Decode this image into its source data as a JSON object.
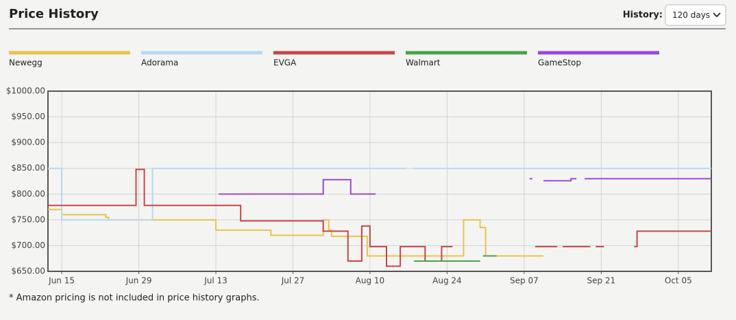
{
  "header": {
    "title": "Price History",
    "history_label": "History:",
    "history_value": "120 days"
  },
  "chart_data": {
    "type": "line",
    "step": true,
    "xlim": [
      -2.5,
      118
    ],
    "xticks": [
      {
        "value": 0,
        "label": "Jun 15"
      },
      {
        "value": 14,
        "label": "Jun 29"
      },
      {
        "value": 28,
        "label": "Jul 13"
      },
      {
        "value": 42,
        "label": "Jul 27"
      },
      {
        "value": 56,
        "label": "Aug 10"
      },
      {
        "value": 70,
        "label": "Aug 24"
      },
      {
        "value": 84,
        "label": "Sep 07"
      },
      {
        "value": 98,
        "label": "Sep 21"
      },
      {
        "value": 112,
        "label": "Oct 05"
      }
    ],
    "ylim": [
      650,
      1000
    ],
    "yticks": [
      {
        "value": 650,
        "label": "$650.00"
      },
      {
        "value": 700,
        "label": "$700.00"
      },
      {
        "value": 750,
        "label": "$750.00"
      },
      {
        "value": 800,
        "label": "$800.00"
      },
      {
        "value": 850,
        "label": "$850.00"
      },
      {
        "value": 900,
        "label": "$900.00"
      },
      {
        "value": 950,
        "label": "$950.00"
      },
      {
        "value": 1000,
        "label": "$1000.00"
      }
    ],
    "grid": true,
    "series": [
      {
        "name": "Newegg",
        "color": "#e8c44a",
        "x": [
          -2.5,
          0,
          0,
          8,
          8,
          8.5,
          8.5,
          28,
          28,
          38,
          38,
          47.5,
          47.5,
          48.5,
          48.5,
          49,
          49,
          55.5,
          55.5,
          73,
          73,
          76,
          76,
          77,
          77,
          87.5
        ],
        "values": [
          770,
          770,
          760,
          760,
          755,
          755,
          750,
          750,
          730,
          730,
          720,
          720,
          750,
          750,
          730,
          730,
          718,
          718,
          680,
          680,
          750,
          750,
          735,
          735,
          680,
          680
        ]
      },
      {
        "name": "Adorama",
        "color": "#b5d8f2",
        "x": [
          -2.5,
          0,
          0,
          16.5,
          16.5,
          62.5,
          null,
          63.8,
          118
        ],
        "values": [
          850,
          850,
          750,
          750,
          850,
          850,
          null,
          850,
          850
        ]
      },
      {
        "name": "EVGA",
        "color": "#c4484a",
        "x": [
          -2.5,
          13.5,
          13.5,
          15,
          15,
          32.5,
          32.5,
          47.5,
          47.5,
          52,
          52,
          54.5,
          54.5,
          56,
          56,
          59,
          59,
          61.5,
          61.5,
          66,
          66,
          69,
          69,
          71,
          null,
          86,
          90,
          null,
          91,
          96,
          null,
          97,
          98.5,
          null,
          104,
          104.5,
          104.5,
          118
        ],
        "values": [
          778,
          778,
          848,
          848,
          778,
          778,
          748,
          748,
          728,
          728,
          670,
          670,
          738,
          738,
          698,
          698,
          660,
          660,
          698,
          698,
          670,
          670,
          698,
          698,
          null,
          698,
          698,
          null,
          698,
          698,
          null,
          698,
          698,
          null,
          698,
          698,
          728,
          728
        ]
      },
      {
        "name": "Walmart",
        "color": "#4aa24e",
        "x": [
          64,
          76,
          null,
          76.5,
          79
        ],
        "values": [
          670,
          670,
          null,
          680,
          680
        ]
      },
      {
        "name": "GameStop",
        "color": "#9a48dc",
        "x": [
          28.5,
          47.5,
          47.5,
          52.5,
          52.5,
          57,
          null,
          85,
          85.5,
          null,
          87.5,
          92.5,
          92.5,
          93.5,
          null,
          95,
          118
        ],
        "values": [
          800,
          800,
          828,
          828,
          800,
          800,
          null,
          830,
          830,
          null,
          826,
          826,
          830,
          830,
          null,
          830,
          830
        ]
      }
    ]
  },
  "footnote": "* Amazon pricing is not included in price history graphs."
}
